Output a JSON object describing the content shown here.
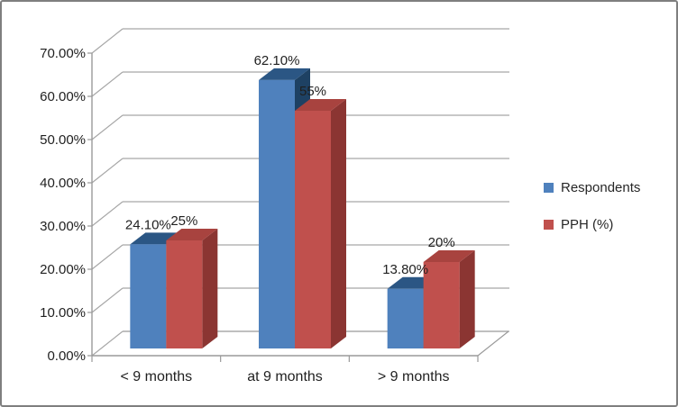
{
  "frame": {
    "background": "#FFFFFF",
    "border_color": "#7F7F7F"
  },
  "chart_data": {
    "type": "bar",
    "subtype": "3d-clustered-column",
    "title": "",
    "xlabel": "",
    "ylabel": "",
    "categories": [
      "< 9 months",
      "at 9 months",
      "> 9 months"
    ],
    "series": [
      {
        "name": "Respondents",
        "values": [
          24.1,
          62.1,
          13.8
        ],
        "labels": [
          "24.10%",
          "62.10%",
          "13.80%"
        ],
        "color": "#4F81BD",
        "color_top": "#2B5684",
        "color_side": "#1E4163"
      },
      {
        "name": "PPH (%)",
        "values": [
          25,
          55,
          20
        ],
        "labels": [
          "25%",
          "55%",
          "20%"
        ],
        "color": "#C0504D",
        "color_top": "#A8433F",
        "color_side": "#8B3532"
      }
    ],
    "ylim": [
      0,
      70
    ],
    "ytick_step": 10,
    "ytick_labels": [
      "0.00%",
      "10.00%",
      "20.00%",
      "30.00%",
      "40.00%",
      "50.00%",
      "60.00%",
      "70.00%"
    ],
    "grid": true,
    "legend_position": "right",
    "axis_color": "#9A9A9A",
    "grid_color": "#A6A6A6",
    "text_color": "#1F1F1F"
  },
  "legend": {
    "items": [
      {
        "label": "Respondents",
        "color": "#4F81BD"
      },
      {
        "label": "PPH (%)",
        "color": "#C0504D"
      }
    ]
  }
}
